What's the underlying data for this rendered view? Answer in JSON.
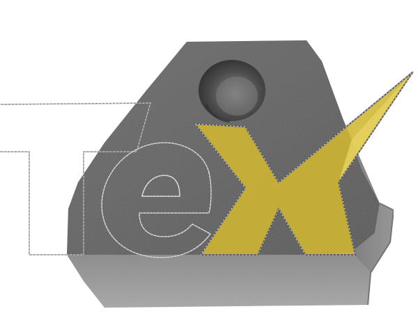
{
  "image": {
    "kind": "logo-illustration",
    "subject": "stone-block",
    "logo_lettering": "TeX",
    "colors": {
      "background": "#ffffff",
      "stone_dark": "#5b5b5b",
      "stone_mid": "#7e7e7e",
      "stone_light": "#a9a9a9",
      "letter_outline": "#9a9a9a",
      "x_fill": "#d6b836",
      "x_fill_translucent": "#e9d35b",
      "x_outline": "#5a5a5a"
    },
    "icons": {
      "stone": "stone-block-icon",
      "hole": "drill-hole-icon",
      "letter_t": "letter-t-glyph",
      "letter_e": "letter-e-glyph",
      "letter_x": "letter-x-glyph"
    }
  }
}
